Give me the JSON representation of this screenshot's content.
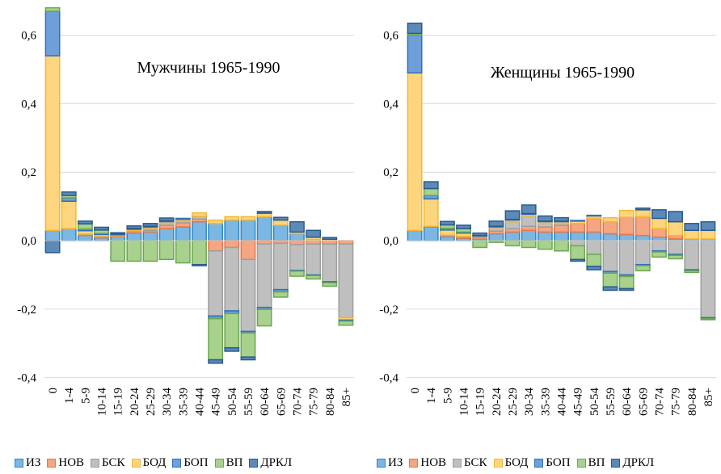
{
  "legend": [
    {
      "label": "ИЗ",
      "color": "#7cb7e4",
      "stroke": "#2e86c9"
    },
    {
      "label": "НОВ",
      "color": "#f4a582",
      "stroke": "#e8764a"
    },
    {
      "label": "БСК",
      "color": "#bfbfbf",
      "stroke": "#9e9e9e"
    },
    {
      "label": "БОД",
      "color": "#fdd57e",
      "stroke": "#f5b731"
    },
    {
      "label": "БОП",
      "color": "#6f9fd8",
      "stroke": "#2f6fbf"
    },
    {
      "label": "ВП",
      "color": "#a9d18e",
      "stroke": "#6aa84f"
    },
    {
      "label": "ДРКЛ",
      "color": "#5b8ab8",
      "stroke": "#2a5a8c"
    }
  ],
  "chart_data": [
    {
      "type": "bar",
      "stacked": true,
      "title": "Мужчины 1965-1990",
      "xlabel": "",
      "ylabel": "",
      "ylim": [
        -0.4,
        0.7
      ],
      "yticks": [
        "-0,4",
        "-0,2",
        "0,0",
        "0,2",
        "0,4",
        "0,6"
      ],
      "yticks_values": [
        -0.4,
        -0.2,
        0.0,
        0.2,
        0.4,
        0.6
      ],
      "categories": [
        "0",
        "1-4",
        "5-9",
        "10-14",
        "15-19",
        "20-24",
        "25-29",
        "30-34",
        "35-39",
        "40-44",
        "45-49",
        "50-54",
        "55-59",
        "60-64",
        "65-69",
        "70-74",
        "75-79",
        "80-84",
        "85+"
      ],
      "series": [
        {
          "name": "ИЗ",
          "values": [
            0.03,
            0.035,
            0.015,
            0.008,
            0.012,
            0.022,
            0.025,
            0.035,
            0.04,
            0.055,
            0.05,
            0.06,
            0.06,
            0.07,
            0.045,
            0.02,
            0.003,
            0.001,
            0.0
          ]
        },
        {
          "name": "НОВ",
          "values": [
            0.0,
            0.0,
            0.002,
            0.003,
            0.002,
            0.005,
            0.005,
            0.01,
            0.012,
            0.008,
            -0.03,
            -0.02,
            -0.055,
            -0.01,
            -0.008,
            -0.012,
            -0.01,
            -0.01,
            -0.01
          ]
        },
        {
          "name": "БСК",
          "values": [
            0.0,
            0.0,
            0.002,
            0.002,
            0.0,
            0.002,
            0.004,
            0.005,
            0.005,
            0.008,
            -0.19,
            -0.185,
            -0.21,
            -0.185,
            -0.135,
            -0.075,
            -0.09,
            -0.11,
            -0.215
          ]
        },
        {
          "name": "БОД",
          "values": [
            0.51,
            0.08,
            0.01,
            0.005,
            0.003,
            0.004,
            0.005,
            0.005,
            0.005,
            0.01,
            0.01,
            0.01,
            0.01,
            0.01,
            0.015,
            0.005,
            0.007,
            0.003,
            -0.007
          ]
        },
        {
          "name": "БОП",
          "values": [
            0.13,
            0.01,
            0.005,
            0.003,
            0.003,
            0.003,
            0.003,
            0.003,
            0.003,
            0.0,
            -0.008,
            -0.008,
            -0.005,
            -0.006,
            -0.007,
            -0.002,
            -0.002,
            -0.003,
            -0.003
          ]
        },
        {
          "name": "ВП",
          "values": [
            0.01,
            0.007,
            0.015,
            0.01,
            -0.06,
            -0.06,
            -0.06,
            -0.055,
            -0.065,
            -0.07,
            -0.12,
            -0.1,
            -0.07,
            -0.048,
            -0.015,
            -0.015,
            -0.01,
            -0.01,
            -0.012
          ]
        },
        {
          "name": "ДРКЛ",
          "values": [
            -0.035,
            0.01,
            0.008,
            0.008,
            0.003,
            0.007,
            0.008,
            0.008,
            0.0,
            -0.003,
            -0.01,
            -0.01,
            -0.008,
            0.005,
            0.008,
            0.03,
            0.02,
            0.005,
            0.0
          ]
        }
      ]
    },
    {
      "type": "bar",
      "stacked": true,
      "title": "Женщины 1965-1990",
      "xlabel": "",
      "ylabel": "",
      "ylim": [
        -0.4,
        0.7
      ],
      "yticks": [
        "-0,4",
        "-0,2",
        "0,0",
        "0,2",
        "0,4",
        "0,6"
      ],
      "yticks_values": [
        -0.4,
        -0.2,
        0.0,
        0.2,
        0.4,
        0.6
      ],
      "categories": [
        "0",
        "1-4",
        "5-9",
        "10-14",
        "15-19",
        "20-24",
        "25-29",
        "30-34",
        "35-39",
        "40-44",
        "45-49",
        "50-54",
        "55-59",
        "60-64",
        "65-69",
        "70-74",
        "75-79",
        "80-84",
        "85+"
      ],
      "series": [
        {
          "name": "ИЗ",
          "values": [
            0.03,
            0.04,
            0.012,
            0.007,
            0.004,
            0.02,
            0.025,
            0.03,
            0.025,
            0.025,
            0.025,
            0.025,
            0.02,
            0.018,
            0.015,
            0.01,
            0.005,
            0.005,
            0.005
          ]
        },
        {
          "name": "НОВ",
          "values": [
            0.0,
            0.002,
            0.002,
            0.003,
            0.005,
            0.008,
            0.01,
            0.012,
            0.015,
            0.02,
            0.025,
            0.04,
            0.035,
            0.05,
            0.055,
            0.025,
            0.01,
            0.0,
            0.0
          ]
        },
        {
          "name": "БСК",
          "values": [
            0.0,
            0.0,
            0.002,
            0.002,
            0.002,
            0.01,
            0.02,
            0.03,
            0.01,
            0.005,
            -0.015,
            -0.04,
            -0.09,
            -0.1,
            -0.07,
            -0.03,
            -0.04,
            -0.085,
            -0.225
          ]
        },
        {
          "name": "БОД",
          "values": [
            0.46,
            0.08,
            0.015,
            0.01,
            0.002,
            0.002,
            0.005,
            0.005,
            0.005,
            0.005,
            0.007,
            0.007,
            0.012,
            0.02,
            0.02,
            0.03,
            0.04,
            0.025,
            0.025
          ]
        },
        {
          "name": "БОП",
          "values": [
            0.11,
            0.01,
            0.005,
            0.003,
            0.002,
            0.002,
            0.002,
            0.002,
            0.002,
            0.002,
            0.002,
            0.002,
            -0.005,
            -0.005,
            -0.003,
            -0.003,
            -0.003,
            -0.003,
            -0.003
          ]
        },
        {
          "name": "ВП",
          "values": [
            0.005,
            0.02,
            0.01,
            0.01,
            -0.02,
            -0.005,
            -0.015,
            -0.02,
            -0.025,
            -0.03,
            -0.04,
            -0.035,
            -0.04,
            -0.035,
            -0.015,
            -0.015,
            -0.01,
            -0.005,
            -0.003
          ]
        },
        {
          "name": "ДРКЛ",
          "values": [
            0.03,
            0.02,
            0.01,
            0.01,
            0.007,
            0.015,
            0.025,
            0.025,
            0.015,
            0.01,
            -0.005,
            -0.01,
            -0.01,
            -0.005,
            0.005,
            0.025,
            0.03,
            0.02,
            0.025
          ]
        }
      ]
    }
  ]
}
